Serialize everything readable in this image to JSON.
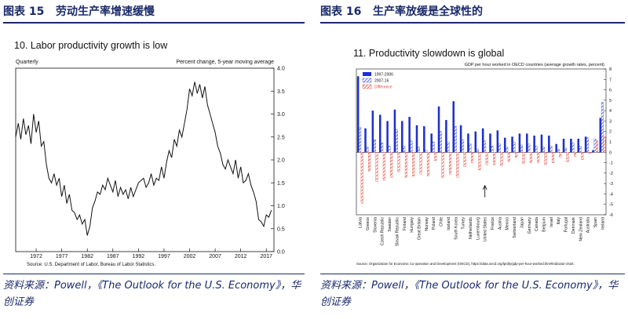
{
  "colors": {
    "heading": "#1a2a6c",
    "line": "#111111",
    "bar_early": "#1f2fcf",
    "bar_late": "#3b4fd6",
    "bar_diff": "#e0473a"
  },
  "left_panel": {
    "exhibit_label": "图表 15",
    "exhibit_title": "劳动生产率增速缓慢",
    "source_note": "资料来源：Powell，《The Outlook for the U.S. Economy》，华创证券"
  },
  "right_panel": {
    "exhibit_label": "图表 16",
    "exhibit_title": "生产率放缓是全球性的",
    "source_note": "资料来源：Powell，《The Outlook for the U.S. Economy》，华创证券"
  },
  "chart_data": [
    {
      "type": "line",
      "title": "10.  Labor productivity growth is low",
      "left_note": "Quarterly",
      "right_note": "Percent change, 5-year moving average",
      "source": "Source:  U.S. Department of Labor, Bureau of Labor Statistics.",
      "xlim": [
        1968,
        2018.5
      ],
      "ylim": [
        0,
        4
      ],
      "x_ticks": [
        "1972",
        "1977",
        "1982",
        "1987",
        "1992",
        "1997",
        "2002",
        "2007",
        "2012",
        "2017"
      ],
      "y_ticks": [
        "0.0",
        "0.5",
        "1.0",
        "1.5",
        "2.0",
        "2.5",
        "3.0",
        "3.5",
        "4.0"
      ],
      "series": [
        {
          "name": "Labor productivity growth",
          "x": [
            1968,
            1968.5,
            1969,
            1969.5,
            1970,
            1970.5,
            1971,
            1971.5,
            1972,
            1972.5,
            1973,
            1973.5,
            1974,
            1974.5,
            1975,
            1975.5,
            1976,
            1976.5,
            1977,
            1977.5,
            1978,
            1978.5,
            1979,
            1979.5,
            1980,
            1980.5,
            1981,
            1981.5,
            1982,
            1982.5,
            1983,
            1983.5,
            1984,
            1984.5,
            1985,
            1985.5,
            1986,
            1986.5,
            1987,
            1987.5,
            1988,
            1988.5,
            1989,
            1989.5,
            1990,
            1990.5,
            1991,
            1991.5,
            1992,
            1992.5,
            1993,
            1993.5,
            1994,
            1994.5,
            1995,
            1995.5,
            1996,
            1996.5,
            1997,
            1997.5,
            1998,
            1998.5,
            1999,
            1999.5,
            2000,
            2000.5,
            2001,
            2001.5,
            2002,
            2002.5,
            2003,
            2003.5,
            2004,
            2004.5,
            2005,
            2005.5,
            2006,
            2006.5,
            2007,
            2007.5,
            2008,
            2008.5,
            2009,
            2009.5,
            2010,
            2010.5,
            2011,
            2011.5,
            2012,
            2012.5,
            2013,
            2013.5,
            2014,
            2014.5,
            2015,
            2015.5,
            2016,
            2016.5,
            2017,
            2017.5,
            2018
          ],
          "y": [
            2.5,
            2.8,
            2.45,
            2.9,
            2.55,
            2.75,
            2.35,
            3.0,
            2.6,
            2.85,
            2.3,
            2.4,
            1.9,
            1.6,
            1.5,
            1.7,
            1.45,
            1.6,
            1.2,
            1.45,
            1.05,
            1.25,
            0.9,
            0.85,
            0.7,
            0.8,
            0.6,
            0.7,
            0.35,
            0.55,
            0.95,
            1.1,
            1.3,
            1.25,
            1.45,
            1.35,
            1.6,
            1.45,
            1.3,
            1.55,
            1.2,
            1.4,
            1.25,
            1.35,
            1.15,
            1.4,
            1.2,
            1.35,
            1.5,
            1.55,
            1.6,
            1.4,
            1.5,
            1.7,
            1.45,
            1.6,
            1.55,
            1.85,
            1.6,
            1.95,
            2.2,
            2.05,
            2.45,
            2.3,
            2.65,
            2.5,
            2.8,
            3.1,
            3.55,
            3.4,
            3.7,
            3.45,
            3.65,
            3.35,
            3.6,
            3.2,
            3.0,
            2.8,
            2.6,
            2.3,
            2.15,
            1.9,
            1.8,
            2.0,
            1.85,
            1.7,
            2.0,
            1.6,
            1.85,
            1.5,
            1.55,
            1.7,
            1.45,
            1.3,
            1.1,
            0.7,
            0.65,
            0.55,
            0.8,
            0.75,
            0.9
          ]
        }
      ]
    },
    {
      "type": "bar",
      "title": "11.  Productivity slowdown is global",
      "subtitle": "GDP per hour worked in OECD countries (average growth rates, percent)",
      "source": "Source:  Organization for Economic Co-operation and Development (OECD), https://data.oecd.org/lprdty/gdp-per-hour-worked.htm#indicator-chart.",
      "ylim": [
        -6,
        8
      ],
      "y_ticks": [
        "8",
        "7",
        "6",
        "5",
        "4",
        "3",
        "2",
        "1",
        "0",
        "-1",
        "-2",
        "-3",
        "-4",
        "-5",
        "-6"
      ],
      "legend_position": "top-left",
      "annotation": "United States marked with an upward arrow",
      "categories": [
        "Latvia",
        "Greece",
        "Slovenia",
        "Czech Republic",
        "Sweden",
        "Slovak Republic",
        "Finland",
        "Hungary",
        "Great Britain",
        "Norway",
        "Poland",
        "Chile",
        "Iceland",
        "South Korea",
        "Turkey",
        "Netherlands",
        "Luxembourg",
        "United States",
        "France",
        "Austria",
        "Mexico",
        "Switzerland",
        "Japan",
        "Germany",
        "Canada",
        "Belgium",
        "Israel",
        "Italy",
        "Portugal",
        "Denmark",
        "New Zealand",
        "Australia",
        "Spain",
        "Ireland"
      ],
      "series": [
        {
          "name": "1997-2006",
          "values": [
            7.3,
            2.3,
            4.0,
            3.6,
            3.0,
            4.1,
            3.0,
            3.4,
            2.6,
            2.5,
            1.8,
            4.4,
            3.1,
            4.9,
            2.6,
            1.8,
            2.0,
            2.3,
            1.8,
            2.1,
            1.4,
            1.5,
            1.8,
            1.8,
            1.6,
            1.7,
            1.6,
            0.8,
            1.3,
            1.3,
            1.3,
            1.5,
            0.2,
            3.3
          ]
        },
        {
          "name": "2007-16",
          "values": [
            2.4,
            0.5,
            1.2,
            0.9,
            0.6,
            2.2,
            0.6,
            1.1,
            0.5,
            0.2,
            1.0,
            2.0,
            1.0,
            2.5,
            1.2,
            0.8,
            0.3,
            1.1,
            0.6,
            0.8,
            0.5,
            1.0,
            0.7,
            0.8,
            0.6,
            0.5,
            0.6,
            0.3,
            0.4,
            0.9,
            0.6,
            1.4,
            1.3,
            4.8
          ]
        },
        {
          "name": "Difference",
          "values": [
            -4.9,
            -1.8,
            -2.8,
            -2.7,
            -2.4,
            -1.9,
            -2.4,
            -2.3,
            -2.1,
            -2.3,
            -0.8,
            -2.4,
            -2.1,
            -2.4,
            -1.4,
            -1.0,
            -1.7,
            -1.2,
            -1.2,
            -1.3,
            -0.9,
            -0.5,
            -1.1,
            -1.0,
            -1.0,
            -1.2,
            -1.0,
            -0.5,
            -0.9,
            -0.4,
            -0.7,
            -0.1,
            1.1,
            1.5
          ]
        }
      ]
    }
  ]
}
